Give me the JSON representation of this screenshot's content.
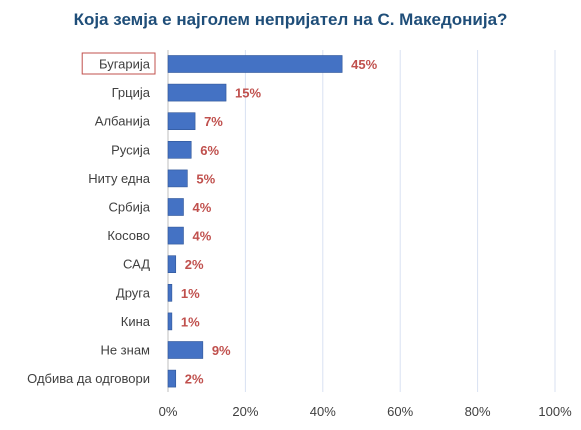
{
  "chart_data": {
    "type": "bar",
    "orientation": "horizontal",
    "title": "Која земја е најголем непријател на С. Македонија?",
    "categories": [
      "Бугарија",
      "Грција",
      "Албанија",
      "Русија",
      "Ниту една",
      "Србија",
      "Косово",
      "САД",
      "Друга",
      "Кина",
      "Не знам",
      "Одбива да одговори"
    ],
    "values": [
      45,
      15,
      7,
      6,
      5,
      4,
      4,
      2,
      1,
      1,
      9,
      2
    ],
    "value_labels": [
      "45%",
      "15%",
      "7%",
      "6%",
      "5%",
      "4%",
      "4%",
      "2%",
      "1%",
      "1%",
      "9%",
      "2%"
    ],
    "xlim": [
      0,
      100
    ],
    "x_ticks": [
      "0%",
      "20%",
      "40%",
      "60%",
      "80%",
      "100%"
    ],
    "x_tick_values": [
      0,
      20,
      40,
      60,
      80,
      100
    ],
    "grid": true,
    "highlighted_category": "Бугарија",
    "colors": {
      "bar": "#4472c4",
      "bar_edge": "#2f5597",
      "value_label": "#c0504d",
      "gridline": "#d9e1f2",
      "highlight_box": "#c0504d",
      "title": "#1f4e79"
    }
  }
}
